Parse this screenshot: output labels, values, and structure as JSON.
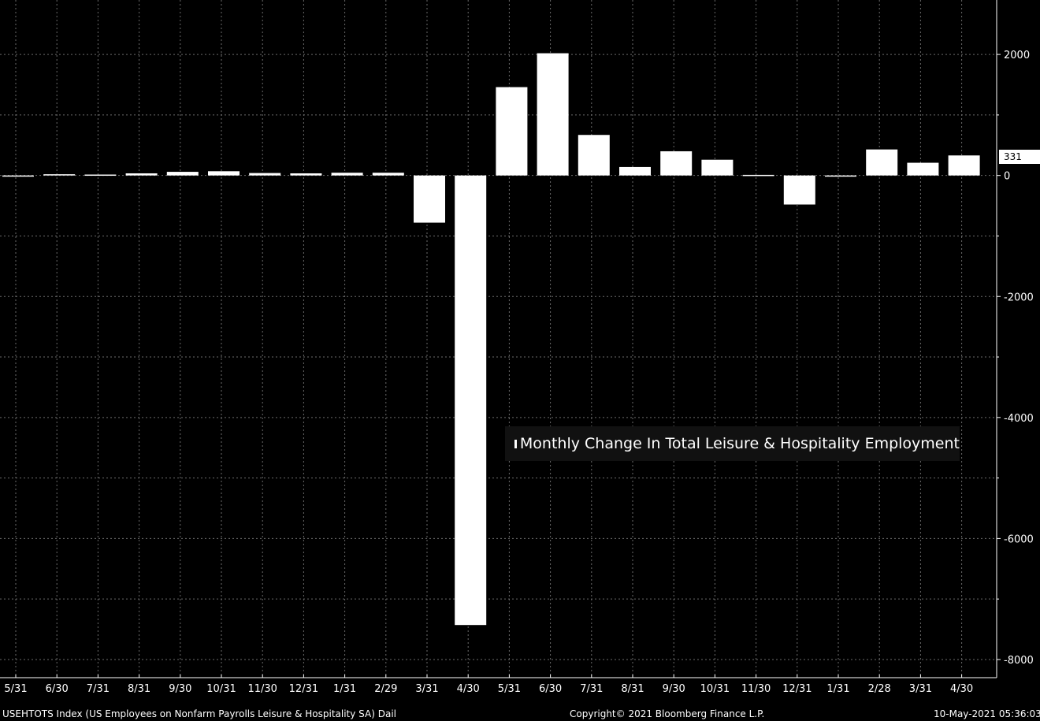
{
  "chart_data": {
    "type": "bar",
    "categories": [
      "5/31",
      "6/30",
      "7/31",
      "8/31",
      "9/30",
      "10/31",
      "11/30",
      "12/31",
      "1/31",
      "2/29",
      "3/31",
      "4/30",
      "5/31",
      "6/30",
      "7/31",
      "8/31",
      "9/30",
      "10/31",
      "11/30",
      "12/31",
      "1/31",
      "2/28",
      "3/31",
      "4/30"
    ],
    "series": [
      {
        "name": "Monthly Change In Total Leisure & Hospitality Employment",
        "values": [
          -12,
          20,
          15,
          35,
          60,
          70,
          40,
          35,
          45,
          45,
          -780,
          -7430,
          1460,
          2020,
          670,
          140,
          400,
          260,
          10,
          -480,
          -10,
          430,
          210,
          331
        ]
      }
    ],
    "ylim": [
      -8300,
      2900
    ],
    "yticks": [
      2000,
      0,
      -2000,
      -4000,
      -6000,
      -8000
    ],
    "last_value_label": "331",
    "grid": true,
    "legend": "center-right"
  },
  "footer": {
    "left": "USEHTOTS Index (US Employees on Nonfarm Payrolls Leisure & Hospitality SA)  Dail",
    "center": "Copyright© 2021 Bloomberg Finance L.P.",
    "right": "10-May-2021 05:36:03"
  },
  "colors": {
    "background": "#000000",
    "bar": "#ffffff",
    "grid": "#6b6b6b"
  }
}
